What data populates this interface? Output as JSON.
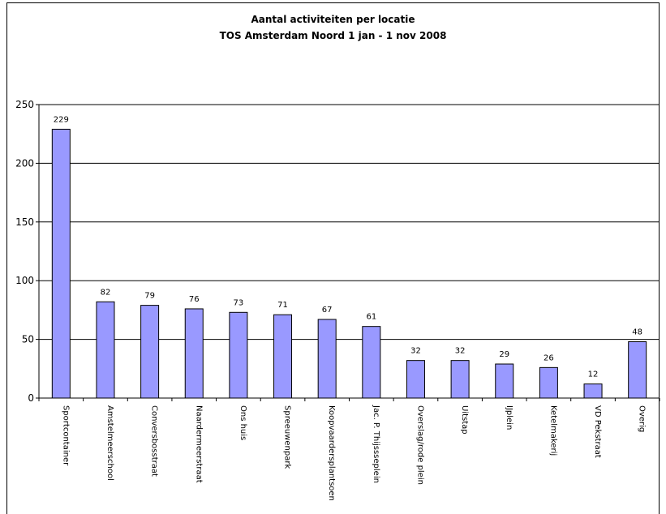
{
  "chart_data": {
    "type": "bar",
    "title": "Aantal activiteiten per locatie",
    "subtitle": "TOS Amsterdam Noord 1 jan - 1 nov 2008",
    "categories": [
      "Sportcontainer",
      "Amstelmeerschool",
      "Conversbosstraat",
      "Naardermeerstraat",
      "Ons huis",
      "Spreeuwenpark",
      "Koopvaardersplantsoen",
      "Jac. P. Thijssseplein",
      "Overslag/rode plein",
      "Uitstap",
      "IJplein",
      "Ketelmakerij",
      "VD Pekstraat",
      "Overig"
    ],
    "values": [
      229,
      82,
      79,
      76,
      73,
      71,
      67,
      61,
      32,
      32,
      29,
      26,
      12,
      48
    ],
    "yticks": [
      0,
      50,
      100,
      150,
      200,
      250
    ],
    "ylim": [
      0,
      250
    ],
    "xlabel": "",
    "ylabel": "",
    "grid": true,
    "legend": "none",
    "bar_color": "#9999ff",
    "bar_border": "#000000"
  }
}
